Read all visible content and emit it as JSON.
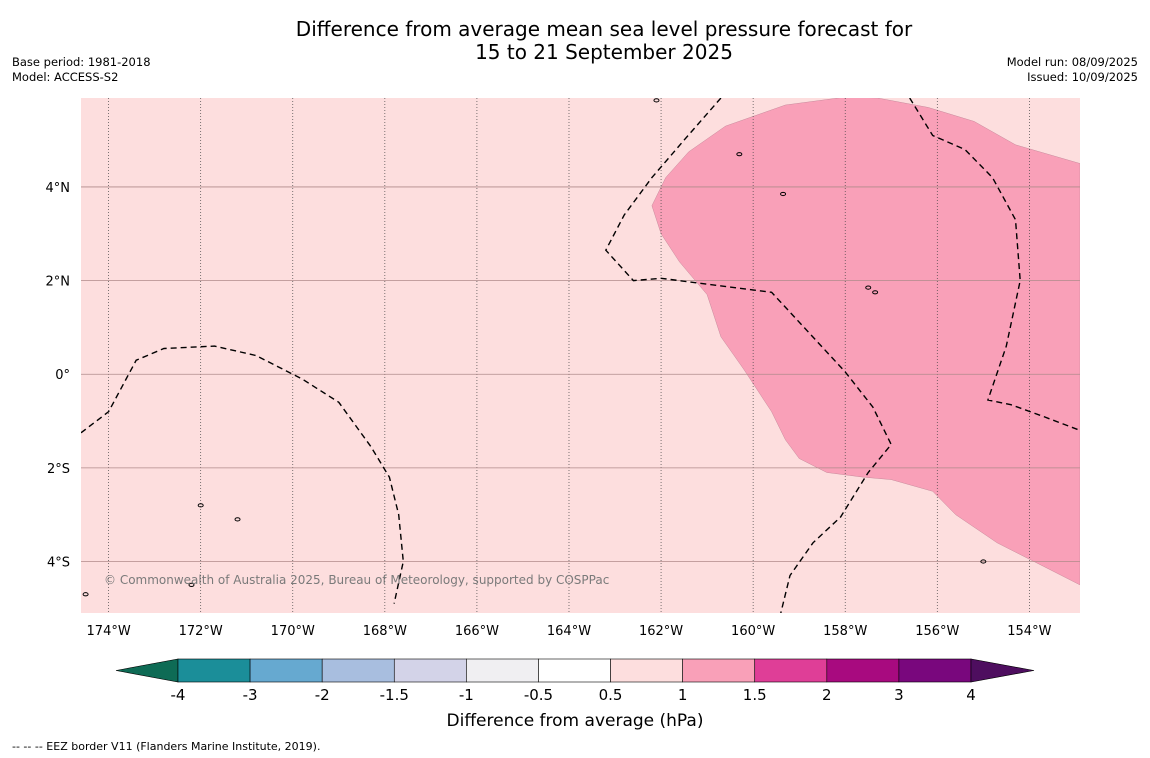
{
  "title": {
    "line1": "Difference from average mean sea level pressure forecast for",
    "line2": "15 to 21 September 2025"
  },
  "meta": {
    "base_period": "Base period: 1981-2018",
    "model": "Model: ACCESS-S2",
    "model_run": "Model run: 08/09/2025",
    "issued": "Issued: 10/09/2025"
  },
  "map": {
    "lon_range": [
      -174.6,
      -152.9
    ],
    "lat_range": [
      -5.1,
      5.9
    ],
    "lon_ticks": [
      {
        "value": -174,
        "label": "174°W"
      },
      {
        "value": -172,
        "label": "172°W"
      },
      {
        "value": -170,
        "label": "170°W"
      },
      {
        "value": -168,
        "label": "168°W"
      },
      {
        "value": -166,
        "label": "166°W"
      },
      {
        "value": -164,
        "label": "164°W"
      },
      {
        "value": -162,
        "label": "162°W"
      },
      {
        "value": -160,
        "label": "160°W"
      },
      {
        "value": -158,
        "label": "158°W"
      },
      {
        "value": -156,
        "label": "156°W"
      },
      {
        "value": -154,
        "label": "154°W"
      }
    ],
    "lat_ticks": [
      {
        "value": 4,
        "label": "4°N"
      },
      {
        "value": 2,
        "label": "2°N"
      },
      {
        "value": 0,
        "label": "0°"
      },
      {
        "value": -2,
        "label": "2°S"
      },
      {
        "value": -4,
        "label": "4°S"
      }
    ],
    "background_color": "#fddede",
    "anomaly_region": {
      "class": "1 to 1.5",
      "color": "#f9a0b8",
      "outline": [
        [
          -162.2,
          3.6
        ],
        [
          -161.9,
          4.2
        ],
        [
          -161.4,
          4.75
        ],
        [
          -160.6,
          5.3
        ],
        [
          -159.3,
          5.75
        ],
        [
          -158.0,
          5.92
        ],
        [
          -157.3,
          5.9
        ],
        [
          -156.2,
          5.7
        ],
        [
          -155.2,
          5.4
        ],
        [
          -154.3,
          4.9
        ],
        [
          -152.9,
          4.5
        ],
        [
          -152.9,
          -4.5
        ],
        [
          -153.7,
          -4.1
        ],
        [
          -154.7,
          -3.6
        ],
        [
          -155.6,
          -3.0
        ],
        [
          -156.1,
          -2.5
        ],
        [
          -157.0,
          -2.25
        ],
        [
          -157.6,
          -2.2
        ],
        [
          -158.4,
          -2.1
        ],
        [
          -159.0,
          -1.8
        ],
        [
          -159.3,
          -1.4
        ],
        [
          -159.6,
          -0.8
        ],
        [
          -160.2,
          0.1
        ],
        [
          -160.7,
          0.8
        ],
        [
          -161.0,
          1.7
        ],
        [
          -161.6,
          2.4
        ],
        [
          -162.0,
          3.0
        ]
      ]
    },
    "eez_borders": [
      [
        [
          -174.6,
          -1.25
        ],
        [
          -174.0,
          -0.8
        ],
        [
          -173.4,
          0.3
        ],
        [
          -172.8,
          0.55
        ],
        [
          -171.7,
          0.6
        ],
        [
          -170.8,
          0.4
        ],
        [
          -169.8,
          -0.1
        ],
        [
          -169.0,
          -0.6
        ],
        [
          -168.3,
          -1.55
        ],
        [
          -167.9,
          -2.2
        ],
        [
          -167.7,
          -3.0
        ],
        [
          -167.6,
          -4.0
        ],
        [
          -167.8,
          -4.9
        ]
      ],
      [
        [
          -160.7,
          5.9
        ],
        [
          -161.5,
          5.0
        ],
        [
          -162.2,
          4.2
        ],
        [
          -162.8,
          3.4
        ],
        [
          -163.2,
          2.65
        ],
        [
          -162.6,
          2.0
        ],
        [
          -162.0,
          2.05
        ],
        [
          -160.8,
          1.9
        ],
        [
          -159.6,
          1.75
        ],
        [
          -158.8,
          0.9
        ],
        [
          -158.0,
          0.05
        ],
        [
          -157.4,
          -0.7
        ],
        [
          -157.0,
          -1.5
        ],
        [
          -157.5,
          -2.1
        ],
        [
          -158.1,
          -3.05
        ],
        [
          -158.7,
          -3.6
        ],
        [
          -159.2,
          -4.3
        ],
        [
          -159.4,
          -5.1
        ]
      ],
      [
        [
          -156.6,
          5.9
        ],
        [
          -156.1,
          5.1
        ],
        [
          -155.4,
          4.8
        ],
        [
          -154.8,
          4.2
        ],
        [
          -154.3,
          3.3
        ],
        [
          -154.2,
          2.0
        ],
        [
          -154.5,
          0.6
        ],
        [
          -154.9,
          -0.55
        ],
        [
          -154.4,
          -0.65
        ],
        [
          -153.7,
          -0.9
        ],
        [
          -152.9,
          -1.2
        ]
      ]
    ],
    "islands": [
      [
        -159.35,
        3.85
      ],
      [
        -157.5,
        1.85
      ],
      [
        -157.35,
        1.75
      ],
      [
        -172.0,
        -2.8
      ],
      [
        -171.2,
        -3.1
      ],
      [
        -172.2,
        -4.5
      ],
      [
        -160.3,
        4.7
      ],
      [
        -162.1,
        5.85
      ],
      [
        -155.0,
        -4.0
      ],
      [
        -174.5,
        -4.7
      ]
    ]
  },
  "copyright": "© Commonwealth of Australia 2025, Bureau of Meteorology, supported by COSPPac",
  "colorbar": {
    "label": "Difference from average (hPa)",
    "tick_labels": [
      "-4",
      "-3",
      "-2",
      "-1.5",
      "-1",
      "-0.5",
      "0.5",
      "1",
      "1.5",
      "2",
      "3",
      "4"
    ],
    "under_color": "#0e6b55",
    "over_color": "#4e0e5f",
    "colors": [
      "#1b8e99",
      "#66a9d0",
      "#a8bedf",
      "#d3d3e8",
      "#f0eff2",
      "#ffffff",
      "#fddede",
      "#f9a0b8",
      "#df3e97",
      "#a80a7f",
      "#79077d"
    ]
  },
  "footer": "--  --  -- EEZ border V11 (Flanders Marine Institute, 2019)."
}
